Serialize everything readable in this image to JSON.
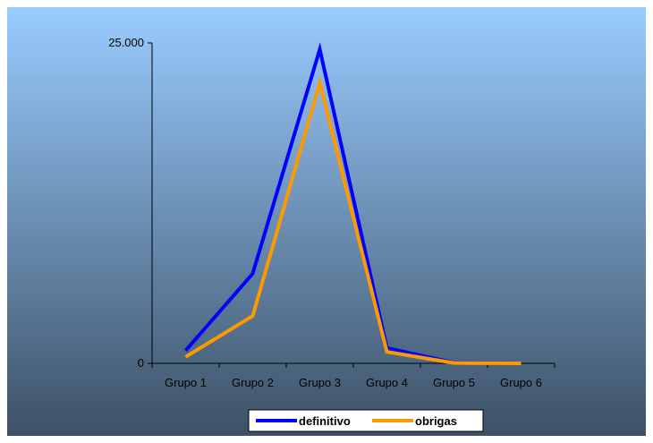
{
  "chart_data": {
    "type": "line",
    "title": "",
    "xlabel": "",
    "ylabel": "",
    "categories": [
      "Grupo 1",
      "Grupo 2",
      "Grupo 3",
      "Grupo 4",
      "Grupo 5",
      "Grupo 6"
    ],
    "y_ticks": [
      "25.000",
      "0"
    ],
    "ylim": [
      0,
      25000
    ],
    "grid": false,
    "legend_position": "bottom",
    "series": [
      {
        "name": "definitivo",
        "color": "#0000ff",
        "values": [
          1000,
          7000,
          24500,
          1200,
          50,
          0
        ]
      },
      {
        "name": "obrigas",
        "color": "#ff9900",
        "values": [
          500,
          3700,
          21900,
          900,
          30,
          0
        ]
      }
    ],
    "background_gradient": [
      "#99ccff",
      "#3d5166"
    ]
  }
}
